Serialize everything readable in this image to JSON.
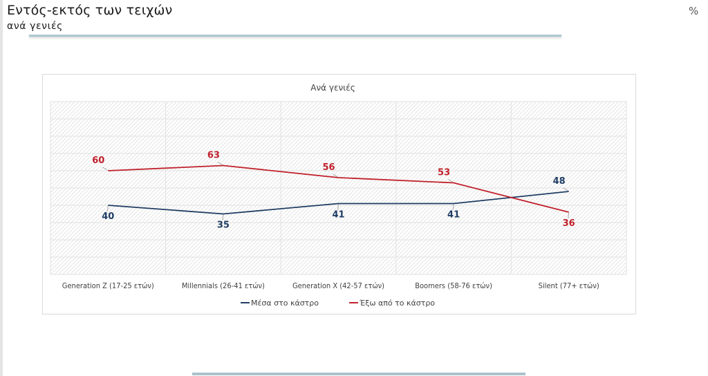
{
  "header": {
    "title": "Εντός-εκτός των τειχών",
    "subtitle": "ανά γενιές",
    "unit": "%"
  },
  "colors": {
    "inside": "#1f3d63",
    "outside": "#c0202b",
    "gridline": "#e2e2e2",
    "leader": "#a6a6a6"
  },
  "chart_data": {
    "type": "line",
    "title": "Ανά γενιές",
    "xlabel": "",
    "ylabel": "",
    "ylim": [
      0,
      100
    ],
    "grid": true,
    "legend_position": "bottom",
    "categories": [
      "Generation Z (17-25 ετών)",
      "Millennials (26-41 ετών)",
      "Generation X (42-57 ετών)",
      "Boomers (58-76 ετών)",
      "Silent (77+ ετών)"
    ],
    "series": [
      {
        "name": "Μέσα στο κάστρο",
        "key": "inside",
        "values": [
          40,
          35,
          41,
          41,
          48
        ],
        "label_side": [
          "below",
          "below",
          "below",
          "below",
          "above"
        ]
      },
      {
        "name": "Έξω από το κάστρο",
        "key": "outside",
        "values": [
          60,
          63,
          56,
          53,
          36
        ],
        "label_side": [
          "above",
          "above",
          "above",
          "above",
          "below"
        ]
      }
    ]
  }
}
